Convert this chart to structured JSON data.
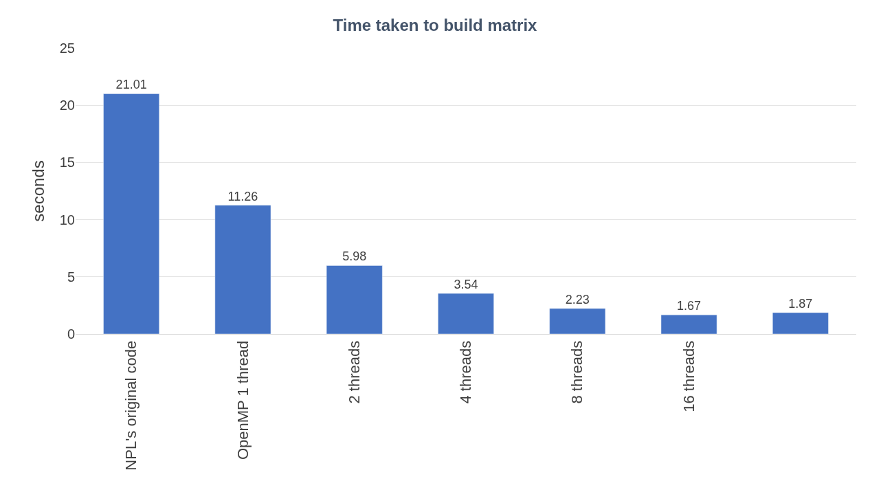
{
  "chart_data": {
    "type": "bar",
    "title": "Time taken to build matrix",
    "ylabel": "seconds",
    "categories": [
      "NPL's original code",
      "OpenMP 1 thread",
      "2 threads",
      "4 threads",
      "8 threads",
      "16 threads",
      null
    ],
    "values": [
      21.01,
      11.26,
      5.98,
      3.54,
      2.23,
      1.67,
      1.87
    ],
    "color": "#4472c4",
    "ylim": [
      0,
      25
    ],
    "yticks": [
      0,
      5,
      10,
      15,
      20,
      25
    ],
    "grid": "y",
    "data_labels": true
  }
}
